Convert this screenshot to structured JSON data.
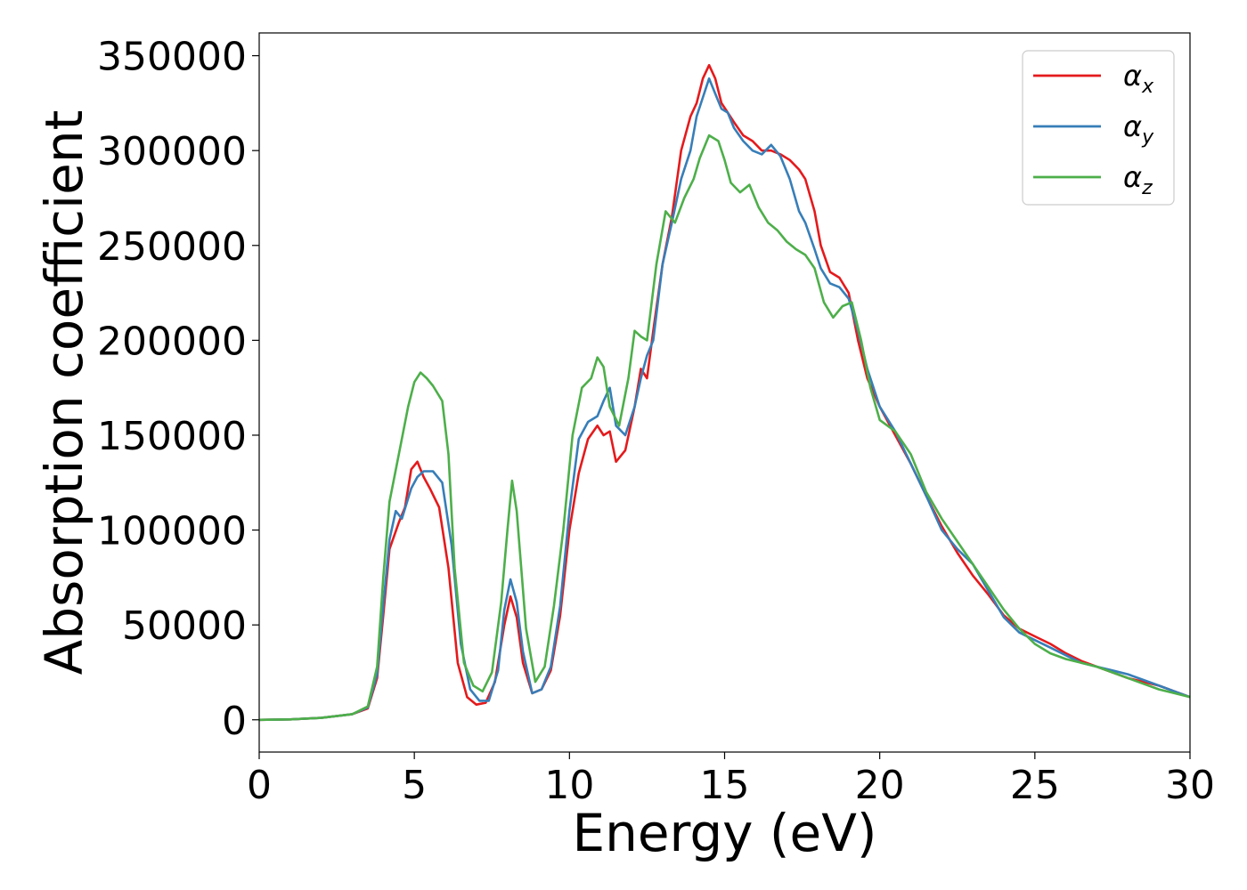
{
  "chart_data": {
    "type": "line",
    "title": "",
    "xlabel": "Energy (eV)",
    "ylabel": "Absorption coefficient",
    "xlim": [
      0,
      30
    ],
    "ylim": [
      -17000,
      362000
    ],
    "xticks": [
      0,
      5,
      10,
      15,
      20,
      25,
      30
    ],
    "xtick_labels": [
      "0",
      "5",
      "10",
      "15",
      "20",
      "25",
      "30"
    ],
    "yticks": [
      0,
      50000,
      100000,
      150000,
      200000,
      250000,
      300000,
      350000
    ],
    "ytick_labels": [
      "0",
      "50000",
      "100000",
      "150000",
      "200000",
      "250000",
      "300000",
      "350000"
    ],
    "grid": false,
    "legend_position": "top-right",
    "series": [
      {
        "name": "αx",
        "symbol": "α",
        "subscript": "x",
        "color": "#e41a1c",
        "x": [
          0,
          1,
          2,
          3,
          3.5,
          3.8,
          4.0,
          4.2,
          4.5,
          4.7,
          4.9,
          5.1,
          5.3,
          5.5,
          5.8,
          6.1,
          6.4,
          6.7,
          7.0,
          7.3,
          7.6,
          7.9,
          8.1,
          8.3,
          8.5,
          8.8,
          9.1,
          9.4,
          9.7,
          10.0,
          10.3,
          10.6,
          10.9,
          11.1,
          11.3,
          11.5,
          11.8,
          12.1,
          12.3,
          12.5,
          12.7,
          13.0,
          13.3,
          13.6,
          13.9,
          14.1,
          14.3,
          14.5,
          14.7,
          14.9,
          15.1,
          15.3,
          15.6,
          15.9,
          16.2,
          16.5,
          16.8,
          17.1,
          17.4,
          17.6,
          17.9,
          18.1,
          18.4,
          18.7,
          19.0,
          19.3,
          19.6,
          20.0,
          20.5,
          21.0,
          21.5,
          22.0,
          22.5,
          23.0,
          23.5,
          24.0,
          24.5,
          25.0,
          25.5,
          26.0,
          26.5,
          27.0,
          27.5,
          28.0,
          28.5,
          29.0,
          29.5,
          30.0
        ],
        "y": [
          0,
          200,
          1000,
          3000,
          6000,
          22000,
          55000,
          90000,
          104000,
          112000,
          132000,
          136000,
          128000,
          122000,
          112000,
          80000,
          30000,
          12000,
          8000,
          9000,
          20000,
          50000,
          65000,
          54000,
          30000,
          14000,
          16000,
          26000,
          55000,
          100000,
          130000,
          148000,
          155000,
          150000,
          152000,
          136000,
          142000,
          165000,
          185000,
          180000,
          205000,
          240000,
          265000,
          300000,
          318000,
          325000,
          338000,
          345000,
          338000,
          325000,
          320000,
          315000,
          308000,
          305000,
          300000,
          300000,
          298000,
          295000,
          290000,
          285000,
          268000,
          250000,
          236000,
          233000,
          225000,
          200000,
          180000,
          165000,
          150000,
          135000,
          118000,
          102000,
          88000,
          76000,
          66000,
          55000,
          48000,
          44000,
          40000,
          35000,
          31000,
          28000,
          25000,
          22000,
          20000,
          18000,
          15000,
          12000
        ]
      },
      {
        "name": "αy",
        "symbol": "α",
        "subscript": "y",
        "color": "#377eb8",
        "x": [
          0,
          1,
          2,
          3,
          3.5,
          3.8,
          4.0,
          4.2,
          4.4,
          4.6,
          4.9,
          5.1,
          5.3,
          5.6,
          5.9,
          6.2,
          6.5,
          6.8,
          7.1,
          7.4,
          7.7,
          7.9,
          8.1,
          8.3,
          8.5,
          8.8,
          9.1,
          9.4,
          9.7,
          10.0,
          10.3,
          10.6,
          10.9,
          11.1,
          11.3,
          11.5,
          11.8,
          12.1,
          12.3,
          12.5,
          12.7,
          13.0,
          13.3,
          13.6,
          13.9,
          14.1,
          14.3,
          14.5,
          14.7,
          14.9,
          15.1,
          15.3,
          15.6,
          15.9,
          16.2,
          16.5,
          16.8,
          17.1,
          17.4,
          17.6,
          17.9,
          18.1,
          18.4,
          18.7,
          19.0,
          19.3,
          19.6,
          20.0,
          20.5,
          21.0,
          21.5,
          22.0,
          22.5,
          23.0,
          23.5,
          24.0,
          24.5,
          25.0,
          25.5,
          26.0,
          26.5,
          27.0,
          27.5,
          28.0,
          28.5,
          29.0,
          29.5,
          30.0
        ],
        "y": [
          0,
          200,
          1000,
          3000,
          6500,
          24000,
          60000,
          95000,
          110000,
          106000,
          122000,
          128000,
          131000,
          131000,
          125000,
          92000,
          40000,
          16000,
          10000,
          10000,
          26000,
          58000,
          74000,
          62000,
          36000,
          14000,
          16000,
          28000,
          60000,
          110000,
          148000,
          157000,
          160000,
          168000,
          175000,
          155000,
          150000,
          165000,
          180000,
          192000,
          200000,
          240000,
          262000,
          285000,
          300000,
          318000,
          328000,
          338000,
          330000,
          322000,
          320000,
          312000,
          305000,
          300000,
          298000,
          303000,
          297000,
          285000,
          268000,
          262000,
          248000,
          238000,
          230000,
          228000,
          222000,
          205000,
          185000,
          165000,
          152000,
          135000,
          118000,
          100000,
          90000,
          82000,
          68000,
          54000,
          46000,
          42000,
          38000,
          34000,
          30000,
          28000,
          26000,
          24000,
          21000,
          18000,
          15000,
          12000
        ]
      },
      {
        "name": "αz",
        "symbol": "α",
        "subscript": "z",
        "color": "#4daf4a",
        "x": [
          0,
          1,
          2,
          3,
          3.5,
          3.8,
          4.0,
          4.2,
          4.5,
          4.8,
          5.0,
          5.2,
          5.4,
          5.6,
          5.9,
          6.1,
          6.3,
          6.6,
          6.9,
          7.2,
          7.5,
          7.8,
          8.0,
          8.15,
          8.3,
          8.6,
          8.9,
          9.2,
          9.5,
          9.8,
          10.1,
          10.4,
          10.7,
          10.9,
          11.1,
          11.3,
          11.6,
          11.9,
          12.1,
          12.3,
          12.5,
          12.8,
          13.1,
          13.4,
          13.7,
          14.0,
          14.2,
          14.5,
          14.8,
          15.0,
          15.2,
          15.5,
          15.8,
          16.1,
          16.4,
          16.7,
          17.0,
          17.3,
          17.6,
          17.9,
          18.2,
          18.5,
          18.8,
          19.1,
          19.4,
          19.7,
          20.0,
          20.5,
          21.0,
          21.5,
          22.0,
          22.5,
          23.0,
          23.5,
          24.0,
          24.5,
          25.0,
          25.5,
          26.0,
          26.5,
          27.0,
          27.5,
          28.0,
          28.5,
          29.0,
          29.5,
          30.0
        ],
        "y": [
          0,
          200,
          1000,
          3000,
          7000,
          28000,
          75000,
          115000,
          140000,
          165000,
          178000,
          183000,
          180000,
          176000,
          168000,
          140000,
          80000,
          30000,
          18000,
          15000,
          25000,
          62000,
          100000,
          126000,
          110000,
          48000,
          20000,
          28000,
          60000,
          100000,
          150000,
          175000,
          180000,
          191000,
          186000,
          165000,
          155000,
          180000,
          205000,
          202000,
          200000,
          240000,
          268000,
          262000,
          275000,
          285000,
          296000,
          308000,
          305000,
          295000,
          283000,
          278000,
          282000,
          270000,
          262000,
          258000,
          252000,
          248000,
          245000,
          238000,
          220000,
          212000,
          218000,
          220000,
          200000,
          175000,
          158000,
          152000,
          140000,
          120000,
          106000,
          94000,
          82000,
          70000,
          58000,
          48000,
          40000,
          35000,
          32000,
          30000,
          28000,
          25000,
          22000,
          19000,
          16000,
          14000,
          12000
        ]
      }
    ]
  }
}
